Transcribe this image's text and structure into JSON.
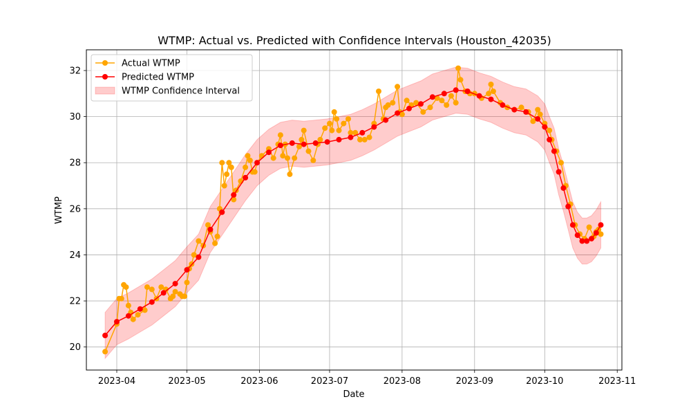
{
  "chart_data": {
    "type": "line",
    "title": "WTMP: Actual vs. Predicted with Confidence Intervals (Houston_42035)",
    "xlabel": "Date",
    "ylabel": "WTMP",
    "xlim": [
      "2023-03-19",
      "2023-11-03"
    ],
    "ylim": [
      19.0,
      32.9
    ],
    "grid": true,
    "legend_position": "top-left",
    "x_ticks": [
      "2023-04-01",
      "2023-05-01",
      "2023-06-01",
      "2023-07-01",
      "2023-08-01",
      "2023-09-01",
      "2023-10-01",
      "2023-11-01"
    ],
    "x_tick_labels": [
      "2023-04",
      "2023-05",
      "2023-06",
      "2023-07",
      "2023-08",
      "2023-09",
      "2023-10",
      "2023-11"
    ],
    "y_ticks": [
      20,
      22,
      24,
      26,
      28,
      30,
      32
    ],
    "series": [
      {
        "name": "Actual WTMP",
        "color": "#ffa500",
        "style": "line-marker",
        "x": [
          "2023-03-27",
          "2023-04-01",
          "2023-04-02",
          "2023-04-03",
          "2023-04-04",
          "2023-04-05",
          "2023-04-06",
          "2023-04-07",
          "2023-04-08",
          "2023-04-10",
          "2023-04-13",
          "2023-04-14",
          "2023-04-16",
          "2023-04-18",
          "2023-04-20",
          "2023-04-22",
          "2023-04-24",
          "2023-04-25",
          "2023-04-26",
          "2023-04-28",
          "2023-04-29",
          "2023-04-30",
          "2023-05-01",
          "2023-05-02",
          "2023-05-03",
          "2023-05-04",
          "2023-05-06",
          "2023-05-08",
          "2023-05-10",
          "2023-05-11",
          "2023-05-13",
          "2023-05-14",
          "2023-05-15",
          "2023-05-16",
          "2023-05-17",
          "2023-05-18",
          "2023-05-19",
          "2023-05-20",
          "2023-05-21",
          "2023-05-22",
          "2023-05-24",
          "2023-05-26",
          "2023-05-27",
          "2023-05-28",
          "2023-05-29",
          "2023-05-30",
          "2023-05-31",
          "2023-06-02",
          "2023-06-05",
          "2023-06-07",
          "2023-06-09",
          "2023-06-10",
          "2023-06-11",
          "2023-06-12",
          "2023-06-13",
          "2023-06-14",
          "2023-06-16",
          "2023-06-18",
          "2023-06-19",
          "2023-06-20",
          "2023-06-22",
          "2023-06-24",
          "2023-06-26",
          "2023-06-27",
          "2023-06-29",
          "2023-07-01",
          "2023-07-02",
          "2023-07-03",
          "2023-07-04",
          "2023-07-05",
          "2023-07-07",
          "2023-07-09",
          "2023-07-10",
          "2023-07-12",
          "2023-07-14",
          "2023-07-16",
          "2023-07-18",
          "2023-07-20",
          "2023-07-22",
          "2023-07-24",
          "2023-07-25",
          "2023-07-26",
          "2023-07-28",
          "2023-07-30",
          "2023-07-31",
          "2023-08-01",
          "2023-08-03",
          "2023-08-05",
          "2023-08-07",
          "2023-08-10",
          "2023-08-13",
          "2023-08-16",
          "2023-08-18",
          "2023-08-20",
          "2023-08-22",
          "2023-08-24",
          "2023-08-25",
          "2023-08-26",
          "2023-08-28",
          "2023-08-30",
          "2023-09-01",
          "2023-09-04",
          "2023-09-07",
          "2023-09-08",
          "2023-09-09",
          "2023-09-12",
          "2023-09-15",
          "2023-09-18",
          "2023-09-21",
          "2023-09-24",
          "2023-09-26",
          "2023-09-28",
          "2023-09-29",
          "2023-10-01",
          "2023-10-03",
          "2023-10-04",
          "2023-10-06",
          "2023-10-08",
          "2023-10-10",
          "2023-10-12",
          "2023-10-14",
          "2023-10-16",
          "2023-10-18",
          "2023-10-20",
          "2023-10-22",
          "2023-10-23",
          "2023-10-24",
          "2023-10-25"
        ],
        "values": [
          19.8,
          21.0,
          22.1,
          22.1,
          22.7,
          22.6,
          21.8,
          21.5,
          21.2,
          21.4,
          21.6,
          22.6,
          22.5,
          22.1,
          22.6,
          22.5,
          22.1,
          22.2,
          22.4,
          22.3,
          22.2,
          22.2,
          22.8,
          23.4,
          23.6,
          24.0,
          24.6,
          24.4,
          25.3,
          25.0,
          24.5,
          24.8,
          26.0,
          28.0,
          27.0,
          27.5,
          28.0,
          27.8,
          26.4,
          26.8,
          27.2,
          27.8,
          28.3,
          28.1,
          27.6,
          27.6,
          28.0,
          28.3,
          28.6,
          28.2,
          28.8,
          29.2,
          28.3,
          28.8,
          28.2,
          27.5,
          28.2,
          28.7,
          29.0,
          29.4,
          28.5,
          28.1,
          28.8,
          29.0,
          29.5,
          29.7,
          29.4,
          30.2,
          29.9,
          29.4,
          29.7,
          29.9,
          29.3,
          29.3,
          29.0,
          29.0,
          29.1,
          29.7,
          31.1,
          29.9,
          30.4,
          30.5,
          30.6,
          31.3,
          30.2,
          30.1,
          30.7,
          30.5,
          30.6,
          30.2,
          30.4,
          30.8,
          30.7,
          30.5,
          30.9,
          30.6,
          32.1,
          31.6,
          31.1,
          31.0,
          31.0,
          30.8,
          31.0,
          31.4,
          31.1,
          30.6,
          30.4,
          30.3,
          30.4,
          30.2,
          29.8,
          30.3,
          30.1,
          29.7,
          29.4,
          29.0,
          28.5,
          28.0,
          27.0,
          26.2,
          25.3,
          24.9,
          24.7,
          25.2,
          24.8,
          25.0,
          25.1,
          24.9
        ]
      },
      {
        "name": "Predicted WTMP",
        "color": "#ff0000",
        "style": "line-marker",
        "x": [
          "2023-03-27",
          "2023-04-01",
          "2023-04-06",
          "2023-04-11",
          "2023-04-16",
          "2023-04-21",
          "2023-04-26",
          "2023-05-01",
          "2023-05-06",
          "2023-05-11",
          "2023-05-16",
          "2023-05-21",
          "2023-05-26",
          "2023-05-31",
          "2023-06-05",
          "2023-06-10",
          "2023-06-15",
          "2023-06-20",
          "2023-06-25",
          "2023-06-30",
          "2023-07-05",
          "2023-07-10",
          "2023-07-15",
          "2023-07-20",
          "2023-07-25",
          "2023-07-30",
          "2023-08-04",
          "2023-08-09",
          "2023-08-14",
          "2023-08-19",
          "2023-08-24",
          "2023-08-29",
          "2023-09-03",
          "2023-09-08",
          "2023-09-13",
          "2023-09-18",
          "2023-09-23",
          "2023-09-28",
          "2023-10-01",
          "2023-10-03",
          "2023-10-05",
          "2023-10-07",
          "2023-10-09",
          "2023-10-11",
          "2023-10-13",
          "2023-10-15",
          "2023-10-17",
          "2023-10-19",
          "2023-10-21",
          "2023-10-23",
          "2023-10-25"
        ],
        "values": [
          20.5,
          21.1,
          21.35,
          21.65,
          21.95,
          22.35,
          22.75,
          23.35,
          23.9,
          25.1,
          25.85,
          26.6,
          27.35,
          28.0,
          28.45,
          28.75,
          28.85,
          28.8,
          28.85,
          28.9,
          29.0,
          29.1,
          29.3,
          29.55,
          29.85,
          30.15,
          30.35,
          30.55,
          30.85,
          31.0,
          31.15,
          31.1,
          30.9,
          30.75,
          30.5,
          30.3,
          30.2,
          29.9,
          29.55,
          29.0,
          28.5,
          27.6,
          26.9,
          26.1,
          25.3,
          24.85,
          24.6,
          24.6,
          24.7,
          24.95,
          25.3
        ]
      }
    ],
    "bands": [
      {
        "name": "WTMP Confidence Interval",
        "color": "#ff0000",
        "opacity": 0.2,
        "x": [
          "2023-03-27",
          "2023-04-01",
          "2023-04-06",
          "2023-04-11",
          "2023-04-16",
          "2023-04-21",
          "2023-04-26",
          "2023-05-01",
          "2023-05-06",
          "2023-05-11",
          "2023-05-16",
          "2023-05-21",
          "2023-05-26",
          "2023-05-31",
          "2023-06-05",
          "2023-06-10",
          "2023-06-15",
          "2023-06-20",
          "2023-06-25",
          "2023-06-30",
          "2023-07-05",
          "2023-07-10",
          "2023-07-15",
          "2023-07-20",
          "2023-07-25",
          "2023-07-30",
          "2023-08-04",
          "2023-08-09",
          "2023-08-14",
          "2023-08-19",
          "2023-08-24",
          "2023-08-29",
          "2023-09-03",
          "2023-09-08",
          "2023-09-13",
          "2023-09-18",
          "2023-09-23",
          "2023-09-28",
          "2023-10-01",
          "2023-10-03",
          "2023-10-05",
          "2023-10-07",
          "2023-10-09",
          "2023-10-11",
          "2023-10-13",
          "2023-10-15",
          "2023-10-17",
          "2023-10-19",
          "2023-10-21",
          "2023-10-23",
          "2023-10-25"
        ],
        "lower": [
          19.5,
          20.1,
          20.35,
          20.65,
          20.95,
          21.35,
          21.75,
          22.35,
          22.9,
          24.1,
          24.85,
          25.6,
          26.35,
          27.0,
          27.45,
          27.75,
          27.85,
          27.8,
          27.85,
          27.9,
          28.0,
          28.1,
          28.3,
          28.55,
          28.85,
          29.15,
          29.35,
          29.55,
          29.85,
          30.0,
          30.15,
          30.1,
          29.9,
          29.75,
          29.5,
          29.3,
          29.2,
          28.9,
          28.55,
          28.0,
          27.5,
          26.6,
          25.9,
          25.1,
          24.3,
          23.85,
          23.6,
          23.6,
          23.7,
          23.95,
          24.3
        ],
        "upper": [
          21.5,
          22.1,
          22.35,
          22.65,
          22.95,
          23.35,
          23.75,
          24.35,
          24.9,
          26.1,
          26.85,
          27.6,
          28.35,
          29.0,
          29.45,
          29.75,
          29.85,
          29.8,
          29.85,
          29.9,
          30.0,
          30.1,
          30.3,
          30.55,
          30.85,
          31.15,
          31.35,
          31.55,
          31.85,
          32.0,
          32.15,
          32.1,
          31.9,
          31.75,
          31.5,
          31.3,
          31.2,
          30.9,
          30.55,
          30.0,
          29.5,
          28.6,
          27.9,
          27.1,
          26.3,
          25.85,
          25.6,
          25.6,
          25.7,
          25.95,
          26.3
        ]
      }
    ]
  }
}
